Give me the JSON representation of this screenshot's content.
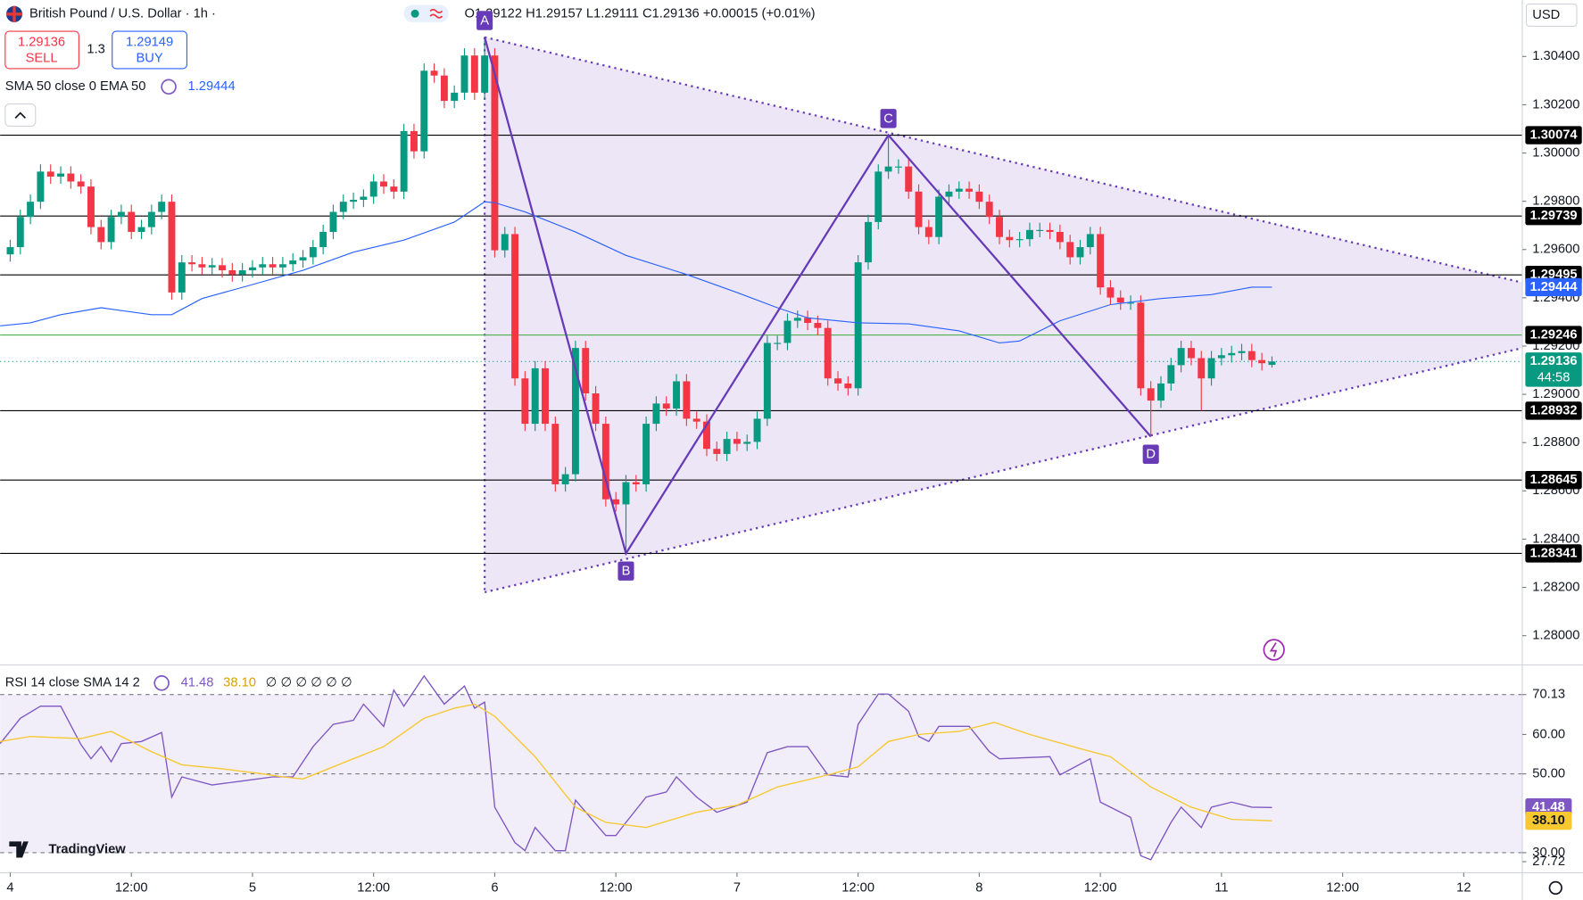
{
  "header": {
    "ohlc": "O1.29122 H1.29157 L1.29111 C1.29136 +0.00015 (+0.01%)",
    "sell_price": "1.29136",
    "sell": "SELL",
    "spread": "1.3",
    "buy_price": "1.29149",
    "buy": "BUY",
    "currency": "USD",
    "brand": "TradingView"
  },
  "chart_data": [
    {
      "type": "candlestick",
      "title": "British Pound / U.S. Dollar · 1h ·",
      "x": [
        0,
        1,
        2,
        3,
        4,
        5,
        6,
        7,
        8,
        9,
        10,
        11,
        12,
        13,
        14,
        15,
        16,
        17,
        18,
        19,
        20,
        21,
        22,
        23,
        24,
        25,
        26,
        27,
        28,
        29,
        30,
        31,
        32,
        33,
        34,
        35,
        36,
        37,
        38,
        39,
        40,
        41,
        42,
        43,
        44,
        45,
        46,
        47,
        48,
        49,
        50,
        51,
        52,
        53,
        54,
        55,
        56,
        57,
        58,
        59,
        60,
        61,
        62,
        63,
        64,
        65,
        66,
        67,
        68,
        69,
        70,
        71,
        72,
        73,
        74,
        75,
        76,
        77,
        78,
        79,
        80,
        81,
        82,
        83,
        84,
        85,
        86,
        87,
        88,
        89,
        90,
        91,
        92,
        93,
        94,
        95,
        96,
        97,
        98,
        99,
        100,
        101,
        102,
        103,
        104,
        105,
        106,
        107,
        108,
        109,
        110,
        111,
        112,
        113,
        114,
        115,
        116,
        117,
        118,
        119,
        120,
        121,
        122,
        123,
        124,
        125
      ],
      "open": [
        1.2958,
        1.2961,
        1.29735,
        1.29798,
        1.29923,
        1.29902,
        1.29915,
        1.29882,
        1.29861,
        1.29693,
        1.29631,
        1.29735,
        1.29756,
        1.29673,
        1.29693,
        1.29756,
        1.29798,
        1.29422,
        1.29547,
        1.29539,
        1.29526,
        1.29535,
        1.29514,
        1.29497,
        1.29514,
        1.29526,
        1.29539,
        1.29526,
        1.29539,
        1.29555,
        1.29568,
        1.2961,
        1.29673,
        1.29756,
        1.29798,
        1.29806,
        1.29819,
        1.29882,
        1.29861,
        1.2984,
        1.30091,
        1.30007,
        1.30341,
        1.30321,
        1.30216,
        1.3025,
        1.30404,
        1.3025,
        1.30404,
        1.29597,
        1.29664,
        1.29066,
        1.28878,
        1.29108,
        1.28878,
        1.28627,
        1.28669,
        1.29192,
        1.29004,
        1.28878,
        1.28565,
        1.28544,
        1.28636,
        1.28627,
        1.28878,
        1.28962,
        1.28941,
        1.29054,
        1.28899,
        1.28887,
        1.28774,
        1.28753,
        1.28815,
        1.28795,
        1.28803,
        1.28899,
        1.29213,
        1.29213,
        1.29305,
        1.29317,
        1.29296,
        1.29275,
        1.29066,
        1.29045,
        1.29025,
        1.29547,
        1.29714,
        1.29923,
        1.29944,
        1.29944,
        1.2984,
        1.29693,
        1.29652,
        1.29819,
        1.2984,
        1.29852,
        1.2984,
        1.29798,
        1.29735,
        1.29652,
        1.29639,
        1.29643,
        1.29681,
        1.29681,
        1.29673,
        1.29631,
        1.29568,
        1.2961,
        1.29664,
        1.29443,
        1.29401,
        1.2938,
        1.2938,
        1.29025,
        1.28974,
        1.29045,
        1.29121,
        1.29192,
        1.2915,
        1.29066,
        1.2915,
        1.29162,
        1.29171,
        1.29179,
        1.29142,
        1.29122
      ],
      "high": [
        1.2964,
        1.29765,
        1.29828,
        1.29953,
        1.29953,
        1.29945,
        1.29945,
        1.29912,
        1.29891,
        1.29723,
        1.29765,
        1.29786,
        1.29786,
        1.29723,
        1.29786,
        1.29828,
        1.29828,
        1.29577,
        1.29577,
        1.29569,
        1.29565,
        1.29565,
        1.29544,
        1.29544,
        1.29556,
        1.29569,
        1.29569,
        1.29569,
        1.29585,
        1.29598,
        1.2964,
        1.29703,
        1.29786,
        1.29828,
        1.29836,
        1.29849,
        1.29912,
        1.29912,
        1.29891,
        1.30121,
        1.30121,
        1.30371,
        1.30371,
        1.30351,
        1.3028,
        1.30434,
        1.30434,
        1.3048,
        1.30434,
        1.29694,
        1.29694,
        1.29096,
        1.29138,
        1.29138,
        1.28908,
        1.28699,
        1.29222,
        1.29222,
        1.29034,
        1.28908,
        1.28595,
        1.28666,
        1.28666,
        1.28908,
        1.28992,
        1.28992,
        1.29084,
        1.29084,
        1.28929,
        1.28917,
        1.28804,
        1.28845,
        1.28845,
        1.28833,
        1.28929,
        1.29243,
        1.29243,
        1.29335,
        1.29347,
        1.29347,
        1.29326,
        1.29305,
        1.29096,
        1.29075,
        1.29577,
        1.29744,
        1.29953,
        1.30074,
        1.29974,
        1.29974,
        1.2987,
        1.29723,
        1.29849,
        1.2987,
        1.29882,
        1.29882,
        1.2987,
        1.29828,
        1.29765,
        1.29682,
        1.29673,
        1.29711,
        1.29711,
        1.29711,
        1.29703,
        1.29661,
        1.2964,
        1.29694,
        1.29694,
        1.29473,
        1.29431,
        1.2941,
        1.2941,
        1.29055,
        1.29075,
        1.29151,
        1.29222,
        1.29222,
        1.2918,
        1.2918,
        1.29192,
        1.29201,
        1.29209,
        1.29209,
        1.29172,
        1.29157
      ],
      "low": [
        1.2955,
        1.2958,
        1.29705,
        1.29768,
        1.29872,
        1.29872,
        1.29852,
        1.29831,
        1.29663,
        1.29601,
        1.29601,
        1.29705,
        1.29643,
        1.29643,
        1.29663,
        1.29726,
        1.29392,
        1.29392,
        1.29509,
        1.29496,
        1.29496,
        1.29484,
        1.29467,
        1.29467,
        1.29484,
        1.29496,
        1.29496,
        1.29496,
        1.29509,
        1.29525,
        1.29538,
        1.2958,
        1.29643,
        1.29726,
        1.29768,
        1.29776,
        1.29789,
        1.29831,
        1.2981,
        1.2981,
        1.29977,
        1.29977,
        1.30291,
        1.30186,
        1.30186,
        1.3022,
        1.3022,
        1.3022,
        1.29567,
        1.29567,
        1.29036,
        1.28848,
        1.28848,
        1.28848,
        1.28597,
        1.28597,
        1.28639,
        1.28974,
        1.28848,
        1.28535,
        1.28514,
        1.28341,
        1.28597,
        1.28597,
        1.28848,
        1.28911,
        1.28911,
        1.28869,
        1.28857,
        1.28744,
        1.28723,
        1.28723,
        1.28765,
        1.28765,
        1.28773,
        1.28869,
        1.29183,
        1.29183,
        1.29275,
        1.29266,
        1.29245,
        1.29036,
        1.29015,
        1.28995,
        1.28995,
        1.29517,
        1.29684,
        1.29893,
        1.29914,
        1.2981,
        1.29663,
        1.29622,
        1.29622,
        1.29789,
        1.2981,
        1.2981,
        1.29768,
        1.29705,
        1.29622,
        1.29609,
        1.29609,
        1.29613,
        1.29651,
        1.29643,
        1.29601,
        1.29538,
        1.29538,
        1.2958,
        1.29413,
        1.29371,
        1.2935,
        1.2935,
        1.28995,
        1.28825,
        1.28944,
        1.29015,
        1.29091,
        1.2912,
        1.28932,
        1.29036,
        1.2912,
        1.29132,
        1.29141,
        1.29112,
        1.29099,
        1.29111
      ],
      "close": [
        1.2961,
        1.29735,
        1.29798,
        1.29923,
        1.29902,
        1.29915,
        1.29882,
        1.29861,
        1.29693,
        1.29631,
        1.29735,
        1.29756,
        1.29673,
        1.29693,
        1.29756,
        1.29798,
        1.29422,
        1.29547,
        1.29539,
        1.29526,
        1.29535,
        1.29514,
        1.29497,
        1.29514,
        1.29526,
        1.29539,
        1.29526,
        1.29539,
        1.29555,
        1.29568,
        1.2961,
        1.29673,
        1.29756,
        1.29798,
        1.29806,
        1.29819,
        1.29882,
        1.29861,
        1.2984,
        1.30091,
        1.30007,
        1.30341,
        1.30321,
        1.30216,
        1.3025,
        1.30404,
        1.3025,
        1.30404,
        1.29597,
        1.29664,
        1.29066,
        1.28878,
        1.29108,
        1.28878,
        1.28627,
        1.28669,
        1.29192,
        1.29004,
        1.28878,
        1.28565,
        1.28544,
        1.28636,
        1.28627,
        1.28878,
        1.28962,
        1.28941,
        1.29054,
        1.28899,
        1.28887,
        1.28774,
        1.28753,
        1.28815,
        1.28795,
        1.28803,
        1.28899,
        1.29213,
        1.29213,
        1.29305,
        1.29317,
        1.29296,
        1.29275,
        1.29066,
        1.29045,
        1.29025,
        1.29547,
        1.29714,
        1.29923,
        1.29944,
        1.29944,
        1.2984,
        1.29693,
        1.29652,
        1.29819,
        1.2984,
        1.29852,
        1.2984,
        1.29798,
        1.29735,
        1.29652,
        1.29639,
        1.29643,
        1.29681,
        1.29681,
        1.29673,
        1.29631,
        1.29568,
        1.2961,
        1.29664,
        1.29443,
        1.29401,
        1.2938,
        1.2938,
        1.29025,
        1.28974,
        1.29045,
        1.29121,
        1.29192,
        1.2915,
        1.29066,
        1.2915,
        1.29162,
        1.29171,
        1.29179,
        1.29142,
        1.29129,
        1.29136
      ],
      "up_color": "#089981",
      "down_color": "#f23645",
      "last_label": "1.29136",
      "countdown": "44:58",
      "xlim": [
        -1,
        149.8
      ],
      "ylim": [
        1.27883,
        1.30634
      ],
      "yticks": [
        {
          "value": 1.304,
          "label": "1.30400"
        },
        {
          "value": 1.302,
          "label": "1.30200"
        },
        {
          "value": 1.3,
          "label": "1.30000"
        },
        {
          "value": 1.298,
          "label": "1.29800"
        },
        {
          "value": 1.296,
          "label": "1.29600"
        },
        {
          "value": 1.294,
          "label": "1.29400"
        },
        {
          "value": 1.292,
          "label": "1.29200"
        },
        {
          "value": 1.29,
          "label": "1.29000"
        },
        {
          "value": 1.288,
          "label": "1.28800"
        },
        {
          "value": 1.286,
          "label": "1.28600"
        },
        {
          "value": 1.284,
          "label": "1.28400"
        },
        {
          "value": 1.282,
          "label": "1.28200"
        },
        {
          "value": 1.28,
          "label": "1.28000"
        }
      ],
      "xticks": [
        {
          "value": 0,
          "label": "4"
        },
        {
          "value": 12,
          "label": "12:00"
        },
        {
          "value": 24,
          "label": "5"
        },
        {
          "value": 36,
          "label": "12:00"
        },
        {
          "value": 48,
          "label": "6"
        },
        {
          "value": 60,
          "label": "12:00"
        },
        {
          "value": 72,
          "label": "7"
        },
        {
          "value": 84,
          "label": "12:00"
        },
        {
          "value": 96,
          "label": "8"
        },
        {
          "value": 108,
          "label": "12:00"
        },
        {
          "value": 120,
          "label": "11"
        },
        {
          "value": 132,
          "label": "12:00"
        },
        {
          "value": 144,
          "label": "12"
        }
      ],
      "levels": [
        {
          "value": 1.30074,
          "label": "1.30074",
          "color": "#000000"
        },
        {
          "value": 1.29739,
          "label": "1.29739",
          "color": "#000000"
        },
        {
          "value": 1.29495,
          "label": "1.29495",
          "color": "#000000"
        },
        {
          "value": 1.29246,
          "label": "1.29246",
          "color": "#4caf50"
        },
        {
          "value": 1.28932,
          "label": "1.28932",
          "color": "#000000"
        },
        {
          "value": 1.28645,
          "label": "1.28645",
          "color": "#000000"
        },
        {
          "value": 1.28341,
          "label": "1.28341",
          "color": "#000000"
        }
      ],
      "overlay": {
        "name": "SMA 50 close 0 EMA 50",
        "color": "#2962ff",
        "last_label": "1.29444",
        "x": [
          -1,
          2,
          5,
          9,
          14,
          16,
          19,
          24,
          29,
          34,
          39,
          44,
          47,
          48,
          51,
          56,
          61,
          67,
          72,
          76,
          79,
          84,
          89,
          94,
          98,
          100,
          104,
          109,
          114,
          119,
          123,
          125
        ],
        "values": [
          1.29284,
          1.29296,
          1.2933,
          1.29359,
          1.2933,
          1.2933,
          1.29397,
          1.29455,
          1.29514,
          1.29589,
          1.29639,
          1.29714,
          1.29798,
          1.29794,
          1.29756,
          1.29673,
          1.29576,
          1.29497,
          1.29422,
          1.29359,
          1.29317,
          1.29296,
          1.29292,
          1.29263,
          1.29213,
          1.29221,
          1.29305,
          1.29372,
          1.29397,
          1.29413,
          1.29444,
          1.29444
        ]
      },
      "pattern": {
        "color": "#673ab7",
        "labels": [
          "A",
          "B",
          "C",
          "D"
        ],
        "x": [
          47,
          61,
          87,
          113
        ],
        "values": [
          1.3048,
          1.28341,
          1.30074,
          1.28825
        ]
      },
      "triangle": {
        "x": [
          47,
          149.8
        ],
        "upper": [
          1.3048,
          1.29463
        ],
        "lower": [
          1.2818,
          1.29192
        ]
      }
    },
    {
      "type": "line",
      "title": "RSI 14 close SMA 14 2",
      "flags": "∅ ∅ ∅ ∅ ∅ ∅",
      "xlim": [
        -1,
        149.8
      ],
      "ylim": [
        24.9,
        77.4
      ],
      "yticks": [
        70.13,
        {
          "value": 60,
          "label": "60.00"
        },
        {
          "value": 50,
          "label": "50.00"
        },
        {
          "value": 30,
          "label": "30.00"
        },
        27.72
      ],
      "hlines": [
        70.13,
        50,
        30
      ],
      "series": [
        {
          "color": "#7e57c2",
          "label": "41.48",
          "x": [
            -1,
            1,
            3,
            5,
            7,
            8,
            9,
            10,
            11,
            13,
            15,
            16,
            17,
            20,
            23,
            26,
            28,
            30,
            32,
            34,
            35,
            37,
            38,
            39,
            41,
            43,
            45,
            46,
            47,
            48,
            50,
            51,
            52,
            54,
            55,
            56,
            59,
            60,
            61,
            63,
            65,
            66,
            68,
            70,
            73,
            75,
            77,
            79,
            81,
            83,
            84,
            86,
            87,
            89,
            90,
            91,
            92,
            95,
            97,
            98,
            103,
            104,
            107,
            108,
            111,
            112,
            113,
            115,
            116,
            118,
            119,
            121,
            123,
            125
          ],
          "values": [
            57.69,
            64.1,
            67.18,
            67.18,
            57.44,
            53.85,
            56.92,
            53.08,
            57.69,
            58.21,
            60.51,
            44.1,
            49.23,
            47.18,
            48.21,
            49.23,
            49.23,
            56.92,
            62.56,
            63.59,
            67.69,
            62.05,
            71.28,
            67.18,
            74.87,
            67.69,
            72.31,
            66.67,
            68.21,
            41.54,
            32.56,
            30.51,
            36.41,
            30.51,
            30.51,
            43.33,
            34.36,
            34.36,
            37.69,
            44.1,
            45.38,
            49.23,
            44.1,
            40.26,
            42.82,
            55.38,
            56.92,
            56.92,
            49.74,
            49.23,
            62.56,
            70.26,
            70.26,
            65.9,
            59.49,
            58.21,
            62.05,
            62.05,
            55.64,
            53.85,
            54.36,
            49.74,
            53.85,
            42.82,
            38.97,
            29.23,
            28.21,
            37.69,
            41.54,
            36.41,
            41.54,
            42.82,
            41.54,
            41.48
          ]
        },
        {
          "color": "#f7c830",
          "label": "38.10",
          "x": [
            -1,
            2,
            7,
            10,
            14,
            17,
            21,
            25,
            27,
            29,
            32,
            37,
            41,
            44,
            46,
            48,
            52,
            56,
            59,
            63,
            68,
            72,
            76,
            81,
            84,
            87,
            90,
            94,
            97.5,
            101,
            106,
            109,
            113,
            117,
            121,
            125
          ],
          "values": [
            58.21,
            59.49,
            58.97,
            60.77,
            55.64,
            52.31,
            51.28,
            50,
            49.23,
            48.72,
            51.79,
            56.92,
            64.1,
            66.67,
            67.69,
            64.62,
            54.36,
            41.54,
            37.69,
            36.41,
            40.26,
            42.05,
            46.67,
            49.74,
            51.79,
            58.21,
            60,
            60.77,
            63.08,
            60,
            56.41,
            54.36,
            46.67,
            41.54,
            38.46,
            38.1
          ]
        }
      ]
    }
  ]
}
